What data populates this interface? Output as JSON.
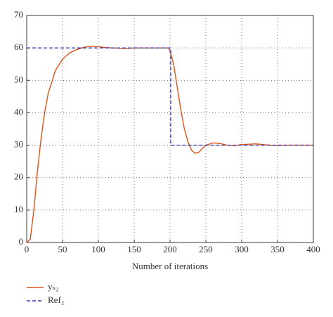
{
  "chart_data": {
    "type": "line",
    "xlabel": "Number of iterations",
    "xlim": [
      0,
      400
    ],
    "xticks": [
      0,
      50,
      100,
      150,
      200,
      250,
      300,
      350,
      400
    ],
    "ylim": [
      0,
      70
    ],
    "yticks": [
      0,
      10,
      20,
      30,
      40,
      50,
      60,
      70
    ],
    "grid": true,
    "legend": "bottom-left",
    "series": [
      {
        "name": "yₛ₂",
        "color": "#d95319",
        "dash": false,
        "x": [
          0,
          5,
          10,
          15,
          20,
          25,
          30,
          40,
          50,
          60,
          70,
          80,
          90,
          100,
          110,
          120,
          130,
          140,
          150,
          160,
          170,
          180,
          190,
          198,
          200,
          205,
          210,
          215,
          220,
          225,
          230,
          235,
          240,
          245,
          250,
          260,
          270,
          280,
          290,
          300,
          310,
          320,
          330,
          340,
          350,
          360,
          380,
          400
        ],
        "values": [
          0,
          1,
          10,
          22,
          32,
          40,
          46,
          53,
          56.5,
          58.5,
          59.5,
          60.2,
          60.5,
          60.4,
          60.1,
          60,
          59.9,
          59.8,
          60,
          60,
          60,
          60,
          60,
          60,
          59,
          55,
          48,
          41,
          35,
          31,
          28.5,
          27.5,
          27.8,
          29,
          30,
          30.7,
          30.5,
          30,
          29.9,
          30.2,
          30.3,
          30.4,
          30.2,
          30,
          29.9,
          30,
          30,
          30
        ]
      },
      {
        "name": "Ref₂",
        "color": "#3b3ba3",
        "dash": true,
        "x": [
          0,
          201,
          201,
          400
        ],
        "values": [
          60,
          60,
          30,
          30
        ]
      }
    ]
  }
}
